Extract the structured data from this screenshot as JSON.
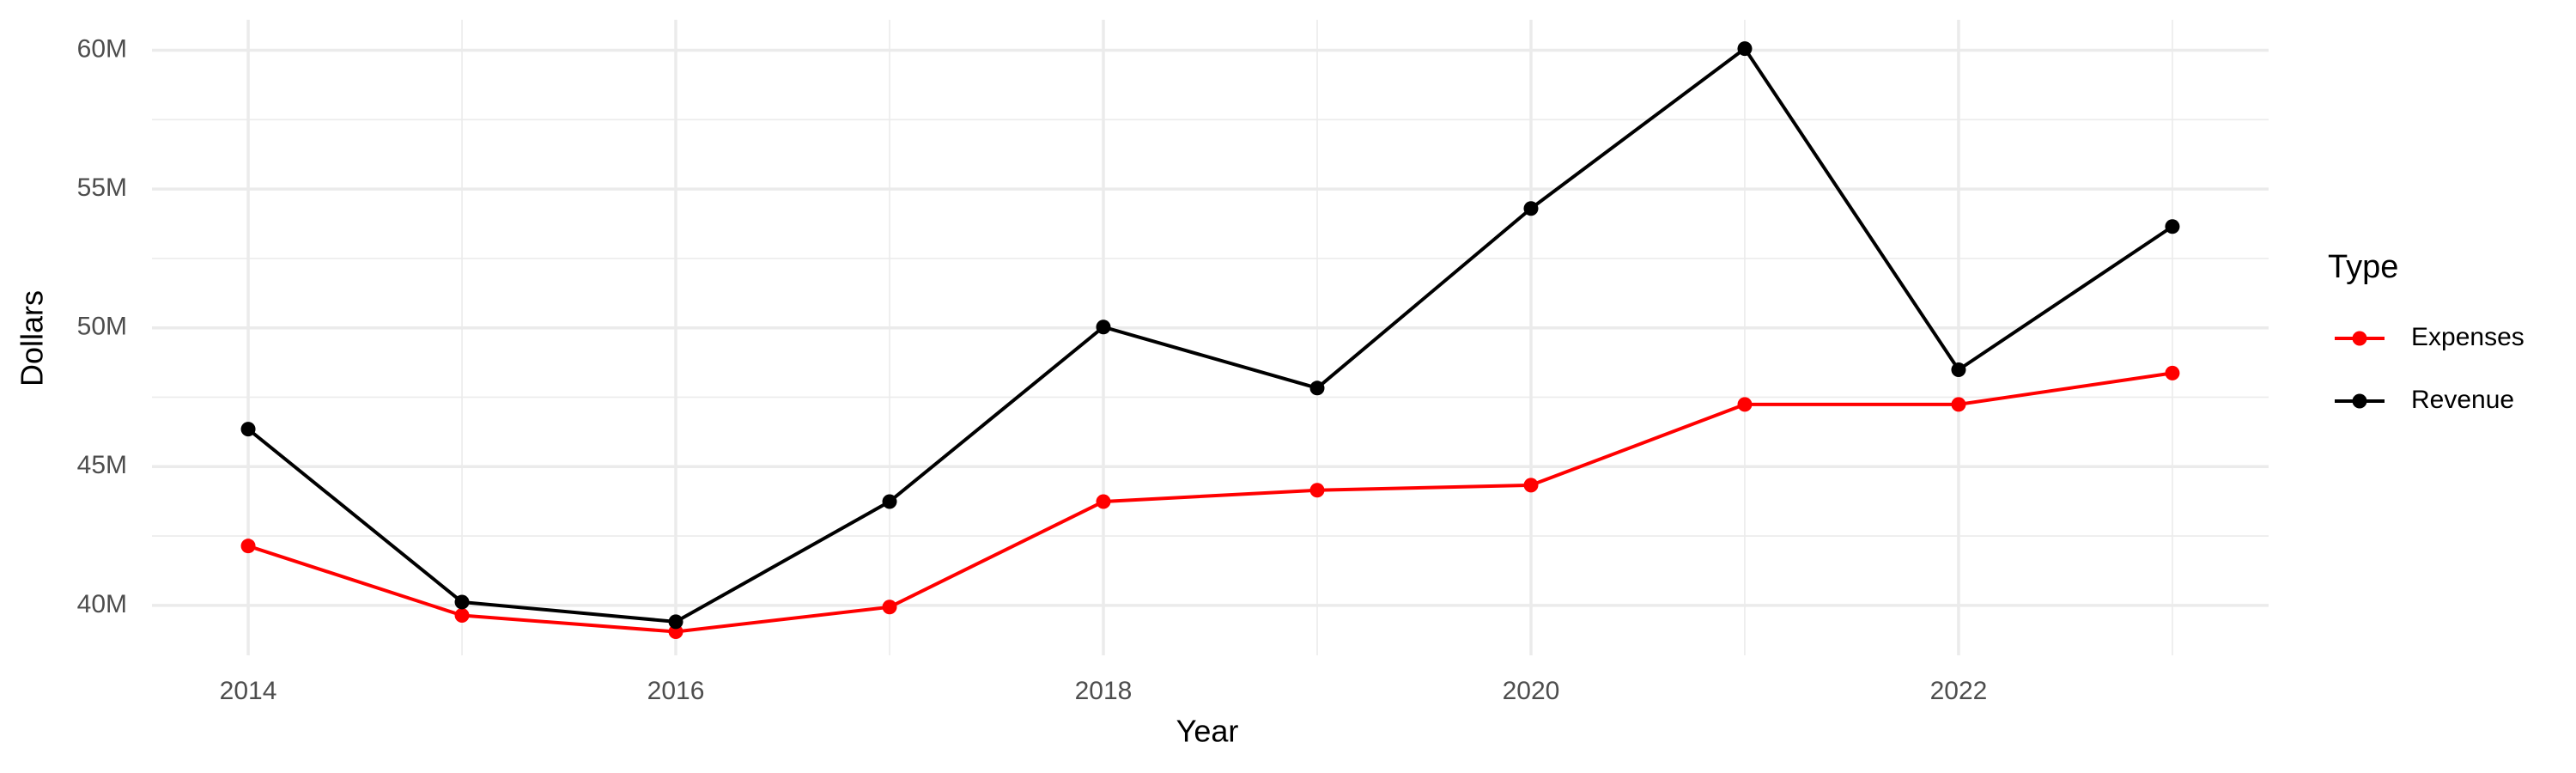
{
  "chart_data": {
    "type": "line",
    "x_label": "Year",
    "y_label": "Dollars",
    "legend_title": "Type",
    "legend": "right",
    "grid": true,
    "x": [
      2014,
      2015,
      2016,
      2017,
      2018,
      2019,
      2020,
      2021,
      2022,
      2023
    ],
    "series": [
      {
        "name": "Expenses",
        "color": "#ff0000",
        "values": [
          42140000,
          39640000,
          39050000,
          39940000,
          43740000,
          44150000,
          44330000,
          47240000,
          47240000,
          48370000
        ]
      },
      {
        "name": "Revenue",
        "color": "#000000",
        "values": [
          46350000,
          40120000,
          39410000,
          43740000,
          50030000,
          47830000,
          54300000,
          60060000,
          48490000,
          53650000
        ]
      }
    ],
    "xlim": [
      2013.55,
      2023.45
    ],
    "xticks": [
      2014,
      2016,
      2018,
      2020,
      2022
    ],
    "ylim": [
      38200000,
      61100000
    ],
    "yticks": [
      {
        "value": 40000000,
        "label": "40M"
      },
      {
        "value": 45000000,
        "label": "45M"
      },
      {
        "value": 50000000,
        "label": "50M"
      },
      {
        "value": 55000000,
        "label": "55M"
      },
      {
        "value": 60000000,
        "label": "60M"
      }
    ]
  }
}
